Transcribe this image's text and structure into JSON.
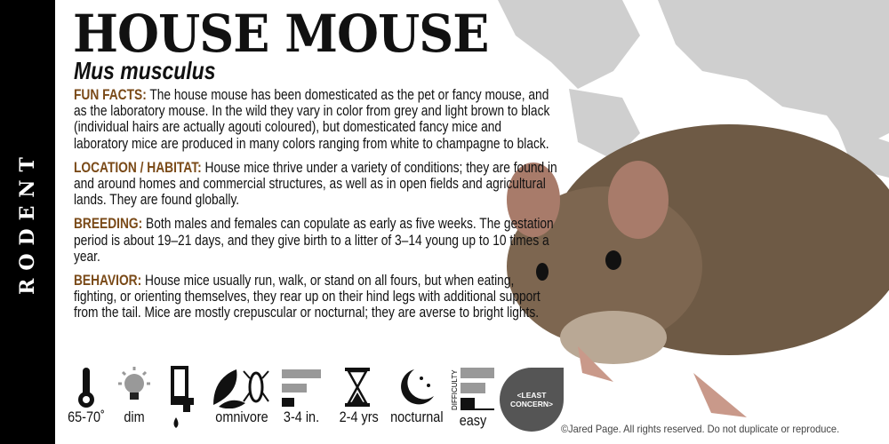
{
  "category": "RODENT",
  "title": "HOUSE MOUSE",
  "scientific_name": "Mus musculus",
  "sections": [
    {
      "label": "FUN FACTS:",
      "text": " The house mouse has been domesticated as the pet or fancy mouse, and as the laboratory mouse. In the wild they vary in color from grey and light brown to black (individual hairs are actually agouti coloured), but domesticated fancy mice and laboratory mice are produced in many colors ranging from white to champagne to black."
    },
    {
      "label": "LOCATION / HABITAT:",
      "text": " House mice thrive under a variety of conditions; they are found in and around homes and commercial structures, as well as in open fields and agricultural lands. They are found globally."
    },
    {
      "label": "BREEDING:",
      "text": " Both males and females can copulate as early as five weeks. The gestation period is about 19–21 days, and they give birth to a litter of 3–14 young up to 10 times a year."
    },
    {
      "label": "BEHAVIOR:",
      "text": " House mice usually run, walk, or stand on all fours, but when eating, fighting, or orienting themselves, they rear up on their hind legs with additional support from the tail. Mice are mostly crepuscular or nocturnal; they are averse to bright lights."
    }
  ],
  "stats": {
    "temperature": {
      "icon": "thermometer-icon",
      "label": "65-70˚"
    },
    "light": {
      "icon": "lightbulb-icon",
      "label": "dim"
    },
    "water": {
      "icon": "faucet-icon"
    },
    "diet": {
      "icon": "leaf-and-cricket-icon",
      "label": "omnivore"
    },
    "size": {
      "icon": "ruler-icon",
      "label": "3-4 in.",
      "level": "small"
    },
    "lifespan": {
      "icon": "hourglass-icon",
      "label": "2-4 yrs"
    },
    "activity": {
      "icon": "moon-icon",
      "label": "nocturnal"
    },
    "difficulty": {
      "icon": "difficulty-bars-icon",
      "heading": "DIFFICULTY",
      "label": "easy",
      "level": 1,
      "max": 3
    },
    "conservation": {
      "line1": "<LEAST",
      "line2": "CONCERN>"
    }
  },
  "copyright": "©Jared Page. All rights reserved.  Do not duplicate or reproduce.",
  "colors": {
    "label": "#7a4a18",
    "sidebar": "#000000",
    "status": "#555555"
  }
}
